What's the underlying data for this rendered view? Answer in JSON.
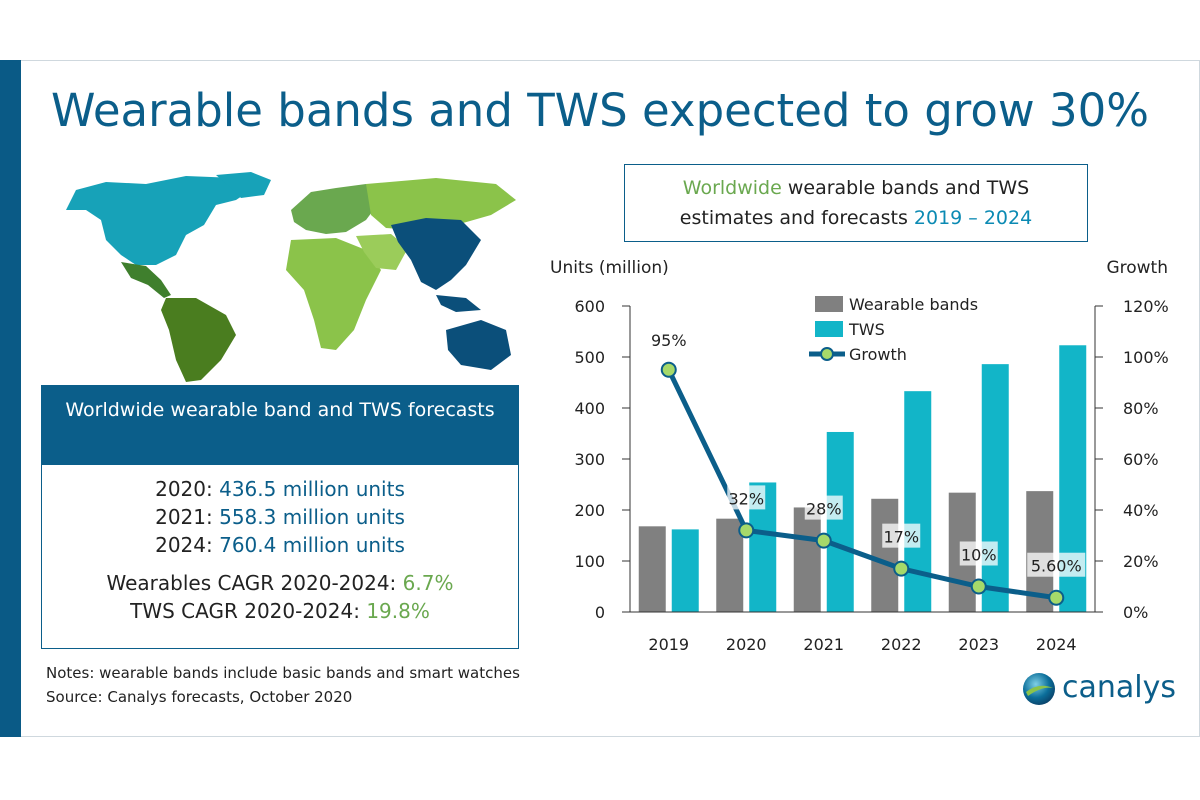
{
  "title": "Wearable bands and TWS expected to grow 30%",
  "forecast_box": {
    "heading": "Worldwide wearable band and TWS forecasts",
    "rows": [
      {
        "year": "2020:",
        "value": "436.5 million units"
      },
      {
        "year": "2021:",
        "value": "558.3 million units"
      },
      {
        "year": "2024:",
        "value": "760.4 million units"
      }
    ],
    "cagr": [
      {
        "label": "Wearables CAGR 2020-2024:",
        "value": "6.7%"
      },
      {
        "label": "TWS CAGR 2020-2024:",
        "value": "19.8%"
      }
    ]
  },
  "notes": {
    "line1": "Notes: wearable bands include basic bands and smart watches",
    "line2": "Source: Canalys forecasts, October 2020"
  },
  "chart_title": {
    "part1": "Worldwide",
    "part2": "wearable bands and TWS",
    "part3": "estimates and forecasts",
    "part4": "2019 – 2024"
  },
  "logo": {
    "text": "canalys"
  },
  "colors": {
    "wearable": "#808080",
    "tws": "#12b5c8",
    "growth_line": "#0b5e8a",
    "growth_marker": "#a6d96a",
    "brand_blue": "#0b5e8a",
    "accent_green": "#6aa84f"
  },
  "chart_data": {
    "type": "bar",
    "categories": [
      "2019",
      "2020",
      "2021",
      "2022",
      "2023",
      "2024"
    ],
    "series": [
      {
        "name": "Wearable bands",
        "values": [
          168,
          183,
          205,
          222,
          234,
          237
        ]
      },
      {
        "name": "TWS",
        "values": [
          162,
          254,
          353,
          433,
          486,
          523
        ]
      }
    ],
    "line_series": {
      "name": "Growth",
      "values": [
        95,
        32,
        28,
        17,
        10,
        5.6
      ],
      "labels": [
        "95%",
        "32%",
        "28%",
        "17%",
        "10%",
        "5.60%"
      ]
    },
    "ylabel": "Units (million)",
    "y2label": "Growth",
    "ylim": [
      0,
      600
    ],
    "y2lim": [
      0,
      120
    ],
    "yticks": [
      "0",
      "100",
      "200",
      "300",
      "400",
      "500",
      "600"
    ],
    "y2ticks": [
      "0%",
      "20%",
      "40%",
      "60%",
      "80%",
      "100%",
      "120%"
    ],
    "legend": [
      "Wearable bands",
      "TWS",
      "Growth"
    ],
    "legend_position": "top-right"
  }
}
